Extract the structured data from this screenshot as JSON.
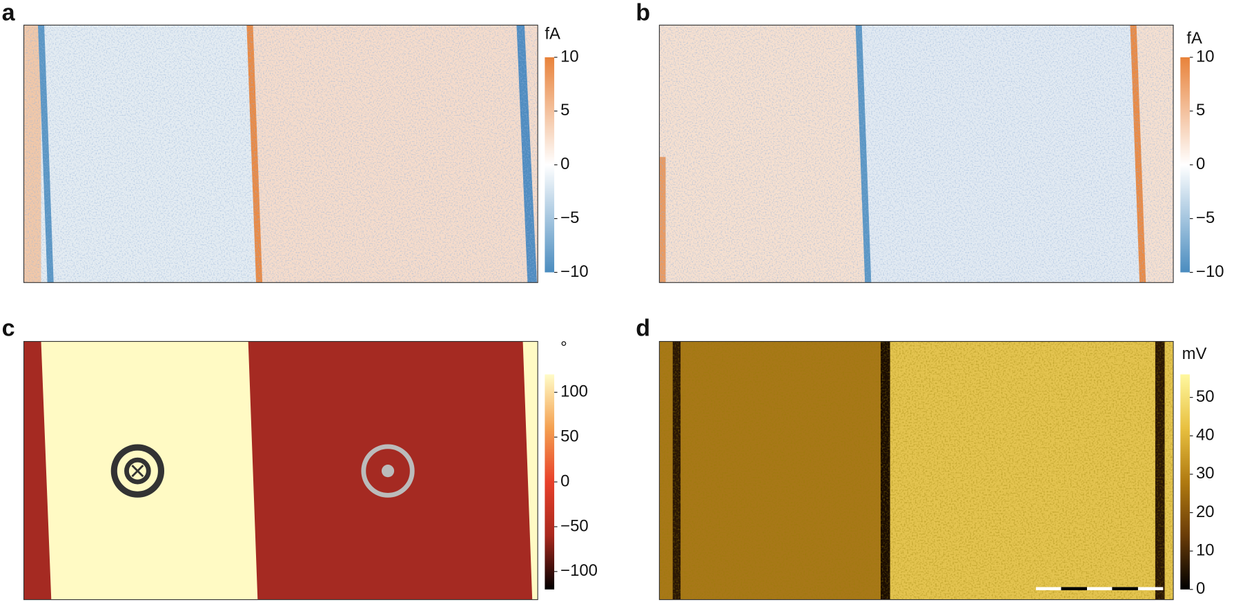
{
  "chart_data": [
    {
      "type": "heatmap",
      "panel_label": "a",
      "colorbar": {
        "label": "fA",
        "lim": [
          -10,
          10
        ],
        "ticks": [
          10,
          5,
          0,
          {
            "value": -5,
            "label": "−5"
          },
          {
            "value": -10,
            "label": "−10"
          }
        ],
        "colors": [
          "#4a8cbf",
          "#ffffff",
          "#e8823a"
        ]
      }
    },
    {
      "type": "heatmap",
      "panel_label": "b",
      "colorbar": {
        "label": "fA",
        "lim": [
          -10,
          10
        ],
        "ticks": [
          10,
          5,
          0,
          {
            "value": -5,
            "label": "−5"
          },
          {
            "value": -10,
            "label": "−10"
          }
        ],
        "colors": [
          "#4a8cbf",
          "#ffffff",
          "#e8823a"
        ]
      }
    },
    {
      "type": "heatmap",
      "panel_label": "c",
      "colorbar": {
        "label": "°",
        "lim": [
          -120,
          120
        ],
        "ticks": [
          100,
          50,
          0,
          {
            "value": -50,
            "label": "−50"
          },
          {
            "value": -100,
            "label": "−100"
          }
        ],
        "colors": [
          "#000000",
          "#a8281e",
          "#e8402a",
          "#f4a050",
          "#fffcc8"
        ]
      }
    },
    {
      "type": "heatmap",
      "panel_label": "d",
      "colorbar": {
        "label": "mV",
        "lim": [
          0,
          56
        ],
        "ticks": [
          0,
          10,
          20,
          30,
          40,
          50
        ],
        "colors": [
          "#000000",
          "#6a3c08",
          "#b07a10",
          "#e8c040",
          "#fff8a0"
        ]
      }
    }
  ]
}
